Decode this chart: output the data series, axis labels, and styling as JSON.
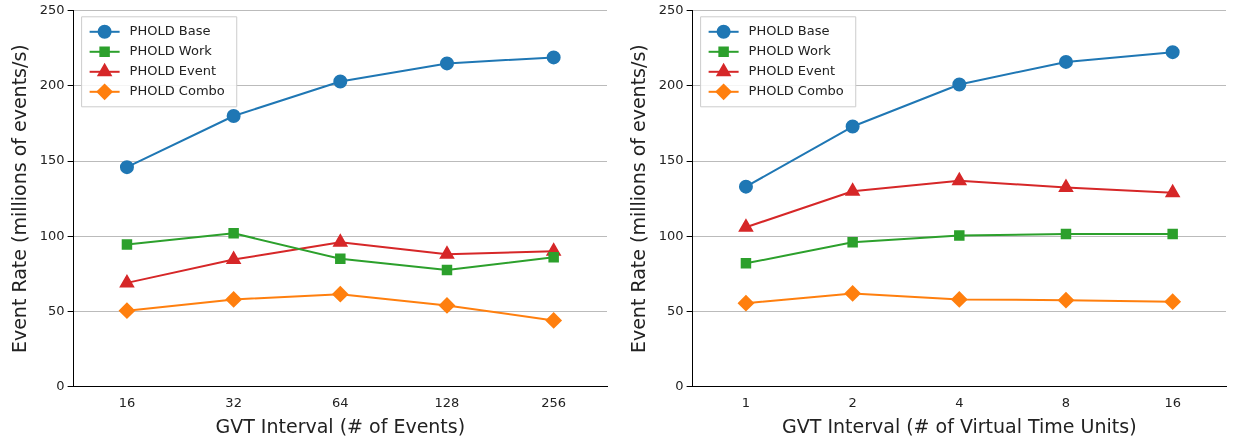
{
  "chart_data": [
    {
      "type": "line",
      "xlabel": "GVT Interval (# of Events)",
      "ylabel": "Event Rate (millions of events/s)",
      "categories": [
        "16",
        "32",
        "64",
        "128",
        "256"
      ],
      "ylim": [
        0,
        250
      ],
      "yticks": [
        0,
        50,
        100,
        150,
        200,
        250
      ],
      "grid": "y",
      "legend": "top left",
      "series": [
        {
          "name": "PHOLD Base",
          "color": "#1f77b4",
          "marker": "circle",
          "values": [
            146,
            180,
            203,
            215,
            219
          ]
        },
        {
          "name": "PHOLD Work",
          "color": "#2ca02c",
          "marker": "square",
          "values": [
            94.5,
            102,
            85,
            77.5,
            86
          ]
        },
        {
          "name": "PHOLD Event",
          "color": "#d62728",
          "marker": "triangle",
          "values": [
            69,
            84.5,
            96,
            88,
            90
          ]
        },
        {
          "name": "PHOLD Combo",
          "color": "#ff7f0e",
          "marker": "diamond",
          "values": [
            50.5,
            58,
            61.5,
            54,
            44
          ]
        }
      ]
    },
    {
      "type": "line",
      "xlabel": "GVT Interval (# of Virtual Time Units)",
      "ylabel": "Event Rate (millions of events/s)",
      "categories": [
        "1",
        "2",
        "4",
        "8",
        "16"
      ],
      "ylim": [
        0,
        250
      ],
      "yticks": [
        0,
        50,
        100,
        150,
        200,
        250
      ],
      "grid": "y",
      "legend": "top left",
      "series": [
        {
          "name": "PHOLD Base",
          "color": "#1f77b4",
          "marker": "circle",
          "values": [
            133,
            173,
            201,
            216,
            222.5
          ]
        },
        {
          "name": "PHOLD Work",
          "color": "#2ca02c",
          "marker": "square",
          "values": [
            82,
            96,
            100.5,
            101.5,
            101.5
          ]
        },
        {
          "name": "PHOLD Event",
          "color": "#d62728",
          "marker": "triangle",
          "values": [
            106,
            130,
            137,
            132.5,
            129
          ]
        },
        {
          "name": "PHOLD Combo",
          "color": "#ff7f0e",
          "marker": "diamond",
          "values": [
            55.5,
            62,
            58,
            57.5,
            56.5
          ]
        }
      ]
    }
  ]
}
